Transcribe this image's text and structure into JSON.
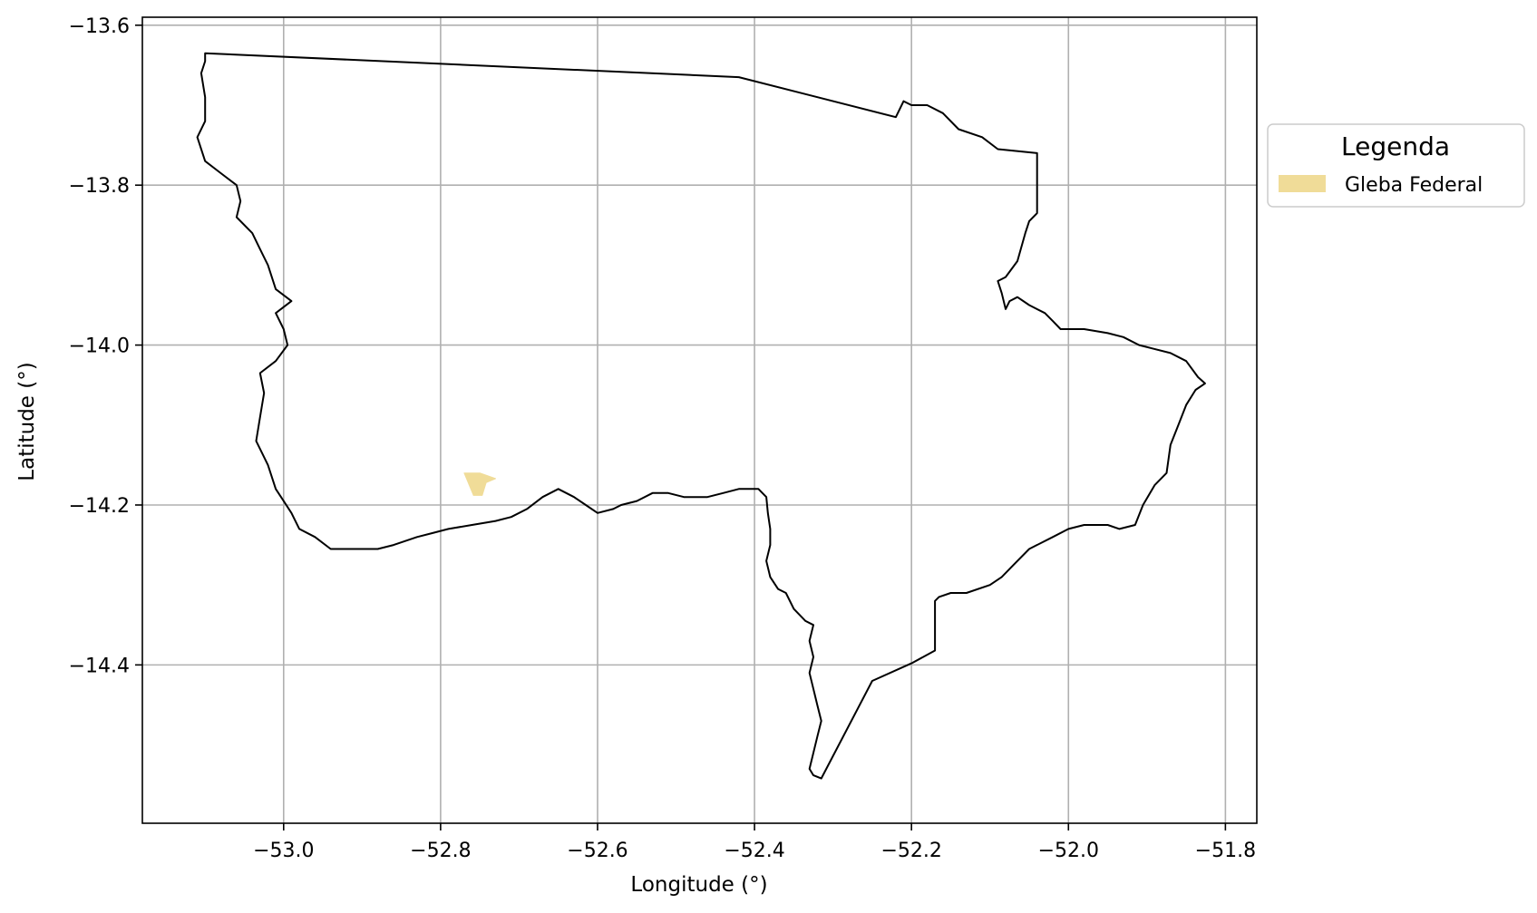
{
  "chart_data": {
    "type": "map",
    "xlabel": "Longitude (°)",
    "ylabel": "Latitude (°)",
    "xlim": [
      -53.18,
      -51.76
    ],
    "ylim": [
      -14.598,
      -13.59
    ],
    "grid": true,
    "x_ticks": [
      -53.0,
      -52.8,
      -52.6,
      -52.4,
      -52.2,
      -52.0,
      -51.8
    ],
    "x_tick_labels": [
      "−53.0",
      "−52.8",
      "−52.6",
      "−52.4",
      "−52.2",
      "−52.0",
      "−51.8"
    ],
    "y_ticks": [
      -13.6,
      -13.8,
      -14.0,
      -14.2,
      -14.4
    ],
    "y_tick_labels": [
      "−13.6",
      "−13.8",
      "−14.0",
      "−14.2",
      "−14.4"
    ],
    "legend": {
      "title": "Legenda",
      "placement": "outside-right",
      "entries": [
        {
          "label": "Gleba Federal",
          "color": "#f0dc98"
        }
      ]
    },
    "layers": [
      {
        "name": "municipality-boundary",
        "style": "outline",
        "color": "#000000",
        "coordinates": [
          [
            -53.1,
            -13.635
          ],
          [
            -52.42,
            -13.665
          ],
          [
            -52.22,
            -13.715
          ],
          [
            -52.21,
            -13.695
          ],
          [
            -52.2,
            -13.7
          ],
          [
            -52.18,
            -13.7
          ],
          [
            -52.16,
            -13.71
          ],
          [
            -52.14,
            -13.73
          ],
          [
            -52.11,
            -13.74
          ],
          [
            -52.09,
            -13.755
          ],
          [
            -52.04,
            -13.76
          ],
          [
            -52.04,
            -13.835
          ],
          [
            -52.05,
            -13.845
          ],
          [
            -52.055,
            -13.86
          ],
          [
            -52.065,
            -13.895
          ],
          [
            -52.08,
            -13.915
          ],
          [
            -52.09,
            -13.92
          ],
          [
            -52.085,
            -13.935
          ],
          [
            -52.08,
            -13.955
          ],
          [
            -52.075,
            -13.945
          ],
          [
            -52.065,
            -13.94
          ],
          [
            -52.05,
            -13.95
          ],
          [
            -52.03,
            -13.96
          ],
          [
            -52.02,
            -13.97
          ],
          [
            -52.01,
            -13.98
          ],
          [
            -51.98,
            -13.98
          ],
          [
            -51.95,
            -13.985
          ],
          [
            -51.93,
            -13.99
          ],
          [
            -51.91,
            -14.0
          ],
          [
            -51.87,
            -14.01
          ],
          [
            -51.85,
            -14.02
          ],
          [
            -51.835,
            -14.04
          ],
          [
            -51.826,
            -14.048
          ],
          [
            -51.838,
            -14.056
          ],
          [
            -51.85,
            -14.075
          ],
          [
            -51.86,
            -14.1
          ],
          [
            -51.87,
            -14.125
          ],
          [
            -51.875,
            -14.16
          ],
          [
            -51.89,
            -14.175
          ],
          [
            -51.905,
            -14.2
          ],
          [
            -51.915,
            -14.225
          ],
          [
            -51.935,
            -14.23
          ],
          [
            -51.95,
            -14.225
          ],
          [
            -51.98,
            -14.225
          ],
          [
            -52.0,
            -14.23
          ],
          [
            -52.02,
            -14.24
          ],
          [
            -52.05,
            -14.255
          ],
          [
            -52.07,
            -14.275
          ],
          [
            -52.085,
            -14.29
          ],
          [
            -52.1,
            -14.3
          ],
          [
            -52.13,
            -14.31
          ],
          [
            -52.15,
            -14.31
          ],
          [
            -52.165,
            -14.315
          ],
          [
            -52.17,
            -14.32
          ],
          [
            -52.17,
            -14.382
          ],
          [
            -52.2,
            -14.398
          ],
          [
            -52.25,
            -14.42
          ],
          [
            -52.315,
            -14.542
          ],
          [
            -52.325,
            -14.538
          ],
          [
            -52.33,
            -14.53
          ],
          [
            -52.325,
            -14.51
          ],
          [
            -52.32,
            -14.49
          ],
          [
            -52.315,
            -14.47
          ],
          [
            -52.32,
            -14.45
          ],
          [
            -52.325,
            -14.43
          ],
          [
            -52.33,
            -14.41
          ],
          [
            -52.325,
            -14.39
          ],
          [
            -52.33,
            -14.37
          ],
          [
            -52.325,
            -14.35
          ],
          [
            -52.335,
            -14.345
          ],
          [
            -52.35,
            -14.33
          ],
          [
            -52.36,
            -14.31
          ],
          [
            -52.37,
            -14.305
          ],
          [
            -52.38,
            -14.29
          ],
          [
            -52.385,
            -14.27
          ],
          [
            -52.38,
            -14.25
          ],
          [
            -52.38,
            -14.23
          ],
          [
            -52.383,
            -14.21
          ],
          [
            -52.385,
            -14.19
          ],
          [
            -52.395,
            -14.18
          ],
          [
            -52.42,
            -14.18
          ],
          [
            -52.44,
            -14.185
          ],
          [
            -52.46,
            -14.19
          ],
          [
            -52.49,
            -14.19
          ],
          [
            -52.51,
            -14.185
          ],
          [
            -52.53,
            -14.185
          ],
          [
            -52.55,
            -14.195
          ],
          [
            -52.57,
            -14.2
          ],
          [
            -52.58,
            -14.205
          ],
          [
            -52.6,
            -14.21
          ],
          [
            -52.615,
            -14.2
          ],
          [
            -52.63,
            -14.19
          ],
          [
            -52.65,
            -14.18
          ],
          [
            -52.67,
            -14.19
          ],
          [
            -52.69,
            -14.205
          ],
          [
            -52.71,
            -14.215
          ],
          [
            -52.73,
            -14.22
          ],
          [
            -52.76,
            -14.225
          ],
          [
            -52.79,
            -14.23
          ],
          [
            -52.81,
            -14.235
          ],
          [
            -52.83,
            -14.24
          ],
          [
            -52.86,
            -14.25
          ],
          [
            -52.88,
            -14.255
          ],
          [
            -52.91,
            -14.255
          ],
          [
            -52.94,
            -14.255
          ],
          [
            -52.96,
            -14.24
          ],
          [
            -52.98,
            -14.23
          ],
          [
            -52.99,
            -14.21
          ],
          [
            -53.0,
            -14.195
          ],
          [
            -53.01,
            -14.18
          ],
          [
            -53.02,
            -14.15
          ],
          [
            -53.035,
            -14.12
          ],
          [
            -53.03,
            -14.09
          ],
          [
            -53.025,
            -14.06
          ],
          [
            -53.03,
            -14.035
          ],
          [
            -53.01,
            -14.02
          ],
          [
            -52.995,
            -14.0
          ],
          [
            -53.0,
            -13.98
          ],
          [
            -53.01,
            -13.96
          ],
          [
            -52.99,
            -13.945
          ],
          [
            -53.01,
            -13.93
          ],
          [
            -53.02,
            -13.9
          ],
          [
            -53.03,
            -13.88
          ],
          [
            -53.04,
            -13.86
          ],
          [
            -53.06,
            -13.84
          ],
          [
            -53.055,
            -13.82
          ],
          [
            -53.06,
            -13.8
          ],
          [
            -53.08,
            -13.785
          ],
          [
            -53.1,
            -13.77
          ],
          [
            -53.11,
            -13.74
          ],
          [
            -53.1,
            -13.72
          ],
          [
            -53.1,
            -13.69
          ],
          [
            -53.105,
            -13.66
          ],
          [
            -53.1,
            -13.645
          ],
          [
            -53.1,
            -13.635
          ]
        ]
      },
      {
        "name": "Gleba Federal",
        "style": "fill",
        "color": "#f0dc98",
        "coordinates": [
          [
            -52.77,
            -14.16
          ],
          [
            -52.75,
            -14.16
          ],
          [
            -52.73,
            -14.167
          ],
          [
            -52.742,
            -14.172
          ],
          [
            -52.747,
            -14.188
          ],
          [
            -52.758,
            -14.188
          ],
          [
            -52.77,
            -14.16
          ]
        ]
      }
    ]
  }
}
